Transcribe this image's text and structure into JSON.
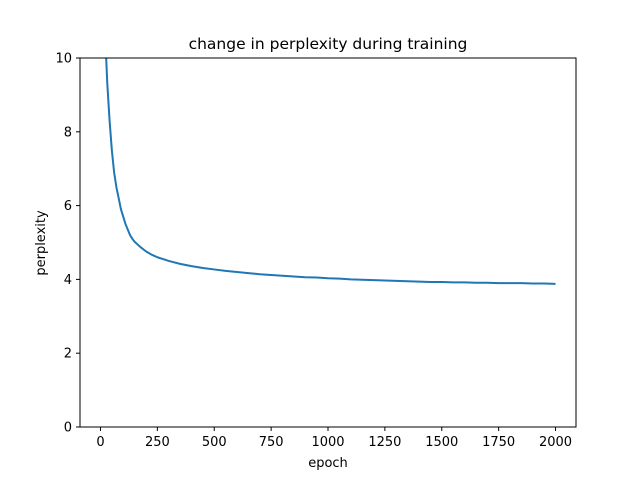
{
  "chart_data": {
    "type": "line",
    "title": "change in perplexity during training",
    "xlabel": "epoch",
    "ylabel": "perplexity",
    "xlim": [
      -90,
      2090
    ],
    "ylim": [
      0,
      10
    ],
    "xticks": [
      0,
      250,
      500,
      750,
      1000,
      1250,
      1500,
      1750,
      2000
    ],
    "yticks": [
      0,
      2,
      4,
      6,
      8,
      10
    ],
    "grid": false,
    "legend": "none",
    "line_color": "#1f77b4",
    "series": [
      {
        "x": [
          20,
          25,
          30,
          40,
          50,
          60,
          70,
          80,
          90,
          100,
          110,
          120,
          130,
          140,
          150,
          175,
          200,
          225,
          250,
          275,
          300,
          350,
          400,
          450,
          500,
          550,
          600,
          650,
          700,
          750,
          800,
          850,
          900,
          950,
          1000,
          1050,
          1100,
          1150,
          1200,
          1250,
          1300,
          1350,
          1400,
          1450,
          1500,
          1550,
          1600,
          1650,
          1700,
          1750,
          1800,
          1850,
          1900,
          1950,
          2000
        ],
        "y": [
          10.2,
          10.0,
          9.3,
          8.3,
          7.5,
          6.9,
          6.5,
          6.2,
          5.9,
          5.7,
          5.5,
          5.35,
          5.2,
          5.1,
          5.02,
          4.88,
          4.76,
          4.67,
          4.6,
          4.55,
          4.5,
          4.42,
          4.36,
          4.31,
          4.27,
          4.23,
          4.2,
          4.17,
          4.14,
          4.12,
          4.1,
          4.08,
          4.06,
          4.05,
          4.03,
          4.02,
          4.0,
          3.99,
          3.98,
          3.97,
          3.96,
          3.95,
          3.94,
          3.93,
          3.93,
          3.92,
          3.92,
          3.91,
          3.91,
          3.9,
          3.9,
          3.9,
          3.89,
          3.89,
          3.88
        ]
      }
    ]
  }
}
